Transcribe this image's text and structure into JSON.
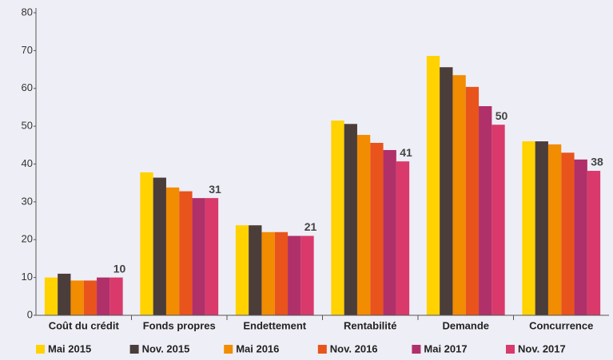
{
  "chart_data": {
    "type": "bar",
    "categories": [
      "Coût du crédit",
      "Fonds propres",
      "Endettement",
      "Rentabilité",
      "Demande",
      "Concurrence"
    ],
    "series": [
      {
        "name": "Mai 2015",
        "color": "#ffd200",
        "values": [
          10,
          37.8,
          23.8,
          51.5,
          68.6,
          46
        ]
      },
      {
        "name": "Nov. 2015",
        "color": "#4b3d3a",
        "values": [
          11,
          36.4,
          23.8,
          50.6,
          65.6,
          46
        ]
      },
      {
        "name": "Mai 2016",
        "color": "#f28c00",
        "values": [
          9.2,
          33.8,
          22,
          47.7,
          63.5,
          45.2
        ]
      },
      {
        "name": "Nov. 2016",
        "color": "#e8541c",
        "values": [
          9.2,
          32.8,
          22,
          45.6,
          60.4,
          43
        ]
      },
      {
        "name": "Mai 2017",
        "color": "#b0306a",
        "values": [
          10,
          31,
          21,
          43.7,
          55.3,
          41.2
        ]
      },
      {
        "name": "Nov. 2017",
        "color": "#d93a6b",
        "values": [
          10,
          31,
          21,
          40.7,
          50.4,
          38.2
        ],
        "value_labels": [
          "10",
          "31",
          "21",
          "41",
          "50",
          "38"
        ]
      }
    ],
    "ylim": [
      0,
      80
    ],
    "yticks": [
      0,
      10,
      20,
      30,
      40,
      50,
      60,
      70,
      80
    ],
    "grid": false,
    "legend": "bottom"
  }
}
